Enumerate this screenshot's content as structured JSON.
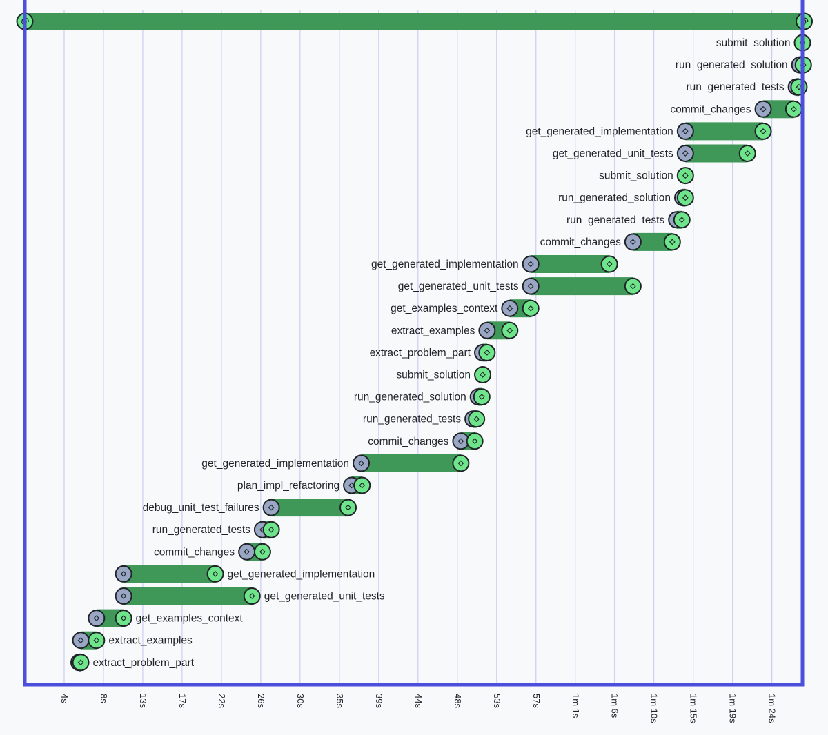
{
  "colors": {
    "frame": "#4b4fdb",
    "gridline": "#c3c6f0",
    "bar": "#3f9758",
    "bar_dark": "#2f7a45",
    "start_marker": "#99a6c4",
    "end_marker": "#6ee58a",
    "text": "#1f2328"
  },
  "icons": {
    "span_marker": "diamond-icon",
    "root_marker": "spiral-icon"
  },
  "chart_data": {
    "type": "gantt",
    "x_unit": "seconds",
    "x_range": [
      0,
      89
    ],
    "x_ticks": [
      {
        "value": 4.5,
        "label": "4s"
      },
      {
        "value": 9,
        "label": "8s"
      },
      {
        "value": 13.5,
        "label": "13s"
      },
      {
        "value": 18,
        "label": "17s"
      },
      {
        "value": 22.5,
        "label": "22s"
      },
      {
        "value": 27,
        "label": "26s"
      },
      {
        "value": 31.5,
        "label": "30s"
      },
      {
        "value": 36,
        "label": "35s"
      },
      {
        "value": 40.5,
        "label": "39s"
      },
      {
        "value": 45,
        "label": "44s"
      },
      {
        "value": 49.5,
        "label": "48s"
      },
      {
        "value": 54,
        "label": "53s"
      },
      {
        "value": 58.5,
        "label": "57s"
      },
      {
        "value": 63,
        "label": "1m 1s"
      },
      {
        "value": 67.5,
        "label": "1m 6s"
      },
      {
        "value": 72,
        "label": "1m 10s"
      },
      {
        "value": 76.5,
        "label": "1m 15s"
      },
      {
        "value": 81,
        "label": "1m 19s"
      },
      {
        "value": 85.5,
        "label": "1m 24s"
      }
    ],
    "root": {
      "label": "",
      "start": 0,
      "end": 89.2
    },
    "spans": [
      {
        "label": "submit_solution",
        "start": 89.0,
        "end": 89.0
      },
      {
        "label": "run_generated_solution",
        "start": 88.7,
        "end": 89.1
      },
      {
        "label": "run_generated_tests",
        "start": 88.3,
        "end": 88.6
      },
      {
        "label": "commit_changes",
        "start": 84.5,
        "end": 88.0
      },
      {
        "label": "get_generated_implementation",
        "start": 75.6,
        "end": 84.5
      },
      {
        "label": "get_generated_unit_tests",
        "start": 75.6,
        "end": 82.7
      },
      {
        "label": "submit_solution",
        "start": 75.6,
        "end": 75.6
      },
      {
        "label": "run_generated_solution",
        "start": 75.3,
        "end": 75.6
      },
      {
        "label": "run_generated_tests",
        "start": 74.6,
        "end": 75.2
      },
      {
        "label": "commit_changes",
        "start": 69.6,
        "end": 74.1
      },
      {
        "label": "get_generated_implementation",
        "start": 57.9,
        "end": 66.9
      },
      {
        "label": "get_generated_unit_tests",
        "start": 57.9,
        "end": 69.6
      },
      {
        "label": "get_examples_context",
        "start": 55.5,
        "end": 57.9
      },
      {
        "label": "extract_examples",
        "start": 52.9,
        "end": 55.5
      },
      {
        "label": "extract_problem_part",
        "start": 52.4,
        "end": 52.9
      },
      {
        "label": "submit_solution",
        "start": 52.4,
        "end": 52.4
      },
      {
        "label": "run_generated_solution",
        "start": 51.9,
        "end": 52.3
      },
      {
        "label": "run_generated_tests",
        "start": 51.3,
        "end": 51.7
      },
      {
        "label": "commit_changes",
        "start": 49.9,
        "end": 51.5
      },
      {
        "label": "get_generated_implementation",
        "start": 38.5,
        "end": 49.9
      },
      {
        "label": "plan_impl_refactoring",
        "start": 37.4,
        "end": 38.6
      },
      {
        "label": "debug_unit_test_failures",
        "start": 28.2,
        "end": 37.0
      },
      {
        "label": "run_generated_tests",
        "start": 27.2,
        "end": 28.2
      },
      {
        "label": "commit_changes",
        "start": 25.4,
        "end": 27.2
      },
      {
        "label": "get_generated_implementation",
        "start": 11.3,
        "end": 21.8
      },
      {
        "label": "get_generated_unit_tests",
        "start": 11.3,
        "end": 26.0
      },
      {
        "label": "get_examples_context",
        "start": 8.2,
        "end": 11.3
      },
      {
        "label": "extract_examples",
        "start": 6.4,
        "end": 8.2
      },
      {
        "label": "extract_problem_part",
        "start": 6.2,
        "end": 6.4
      }
    ]
  }
}
